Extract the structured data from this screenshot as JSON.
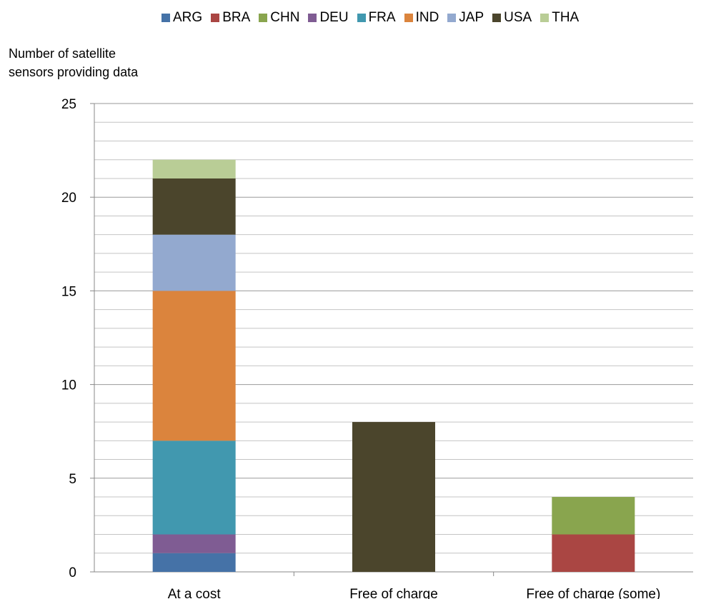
{
  "chart_data": {
    "type": "bar",
    "stacked": true,
    "categories": [
      "At a cost",
      "Free of charge",
      "Free of charge (some)"
    ],
    "series": [
      {
        "name": "ARG",
        "color": "#4572A7",
        "values": [
          1,
          0,
          0
        ]
      },
      {
        "name": "BRA",
        "color": "#AA4643",
        "values": [
          0,
          0,
          2
        ]
      },
      {
        "name": "CHN",
        "color": "#89A54E",
        "values": [
          0,
          0,
          2
        ]
      },
      {
        "name": "DEU",
        "color": "#7F5C93",
        "values": [
          1,
          0,
          0
        ]
      },
      {
        "name": "FRA",
        "color": "#4198AF",
        "values": [
          5,
          0,
          0
        ]
      },
      {
        "name": "IND",
        "color": "#DB843D",
        "values": [
          8,
          0,
          0
        ]
      },
      {
        "name": "JAP",
        "color": "#93A9CF",
        "values": [
          3,
          0,
          0
        ]
      },
      {
        "name": "USA",
        "color": "#4B452C",
        "values": [
          3,
          8,
          0
        ]
      },
      {
        "name": "THA",
        "color": "#B9CD96",
        "values": [
          1,
          0,
          0
        ]
      }
    ],
    "ylabel_lines": [
      "Number of satellite",
      "sensors providing data"
    ],
    "ylim": [
      0,
      25
    ],
    "yticks": [
      "0",
      "5",
      "10",
      "15",
      "20",
      "25"
    ],
    "grid": true,
    "legend_position": "top"
  }
}
